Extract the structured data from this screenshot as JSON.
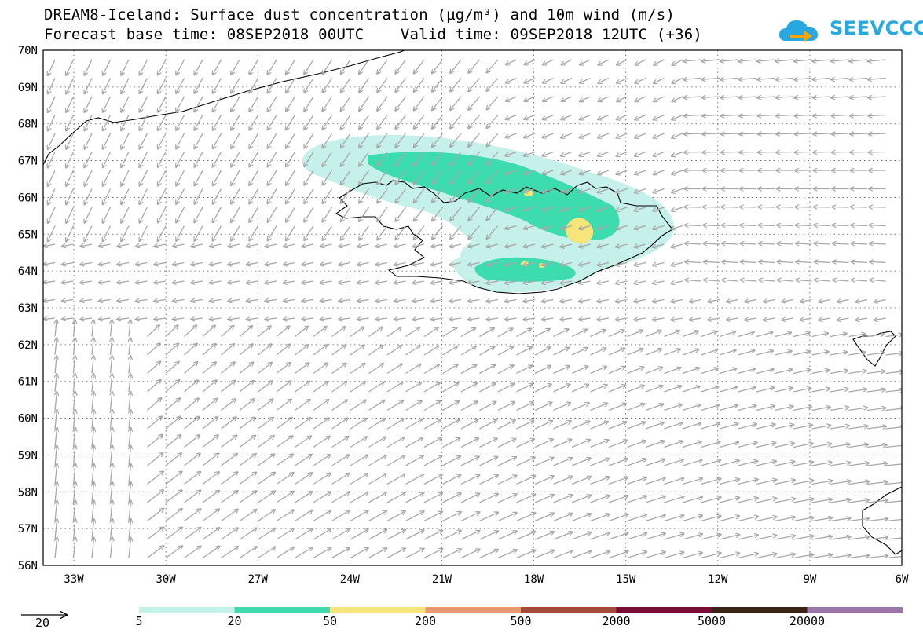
{
  "title": {
    "line1": "DREAM8-Iceland: Surface dust concentration (µg/m³) and 10m wind (m/s)",
    "line2": "Forecast base time: 08SEP2018 00UTC    Valid time: 09SEP2018 12UTC (+36)"
  },
  "logo": {
    "text": "SEEVCCC",
    "color": "#29a8e0"
  },
  "axes": {
    "lat_labels": [
      "70N",
      "69N",
      "68N",
      "67N",
      "66N",
      "65N",
      "64N",
      "63N",
      "62N",
      "61N",
      "60N",
      "59N",
      "58N",
      "57N",
      "56N"
    ],
    "lon_labels": [
      "33W",
      "30W",
      "27W",
      "24W",
      "21W",
      "18W",
      "15W",
      "12W",
      "9W",
      "6W"
    ],
    "lon_range": [
      -34.0,
      -6.0
    ],
    "lat_range": [
      56.0,
      70.0
    ],
    "grid": "dotted"
  },
  "wind_reference": {
    "label": "20",
    "unit": "m/s"
  },
  "legend": {
    "colors": [
      "#c6f0ea",
      "#3ddcae",
      "#f5e57a",
      "#e89a6e",
      "#a64b3c",
      "#7a0b34",
      "#3b2416",
      "#9a76a8"
    ],
    "thresholds": [
      "5",
      "20",
      "50",
      "200",
      "500",
      "2000",
      "5000",
      "20000"
    ]
  }
}
